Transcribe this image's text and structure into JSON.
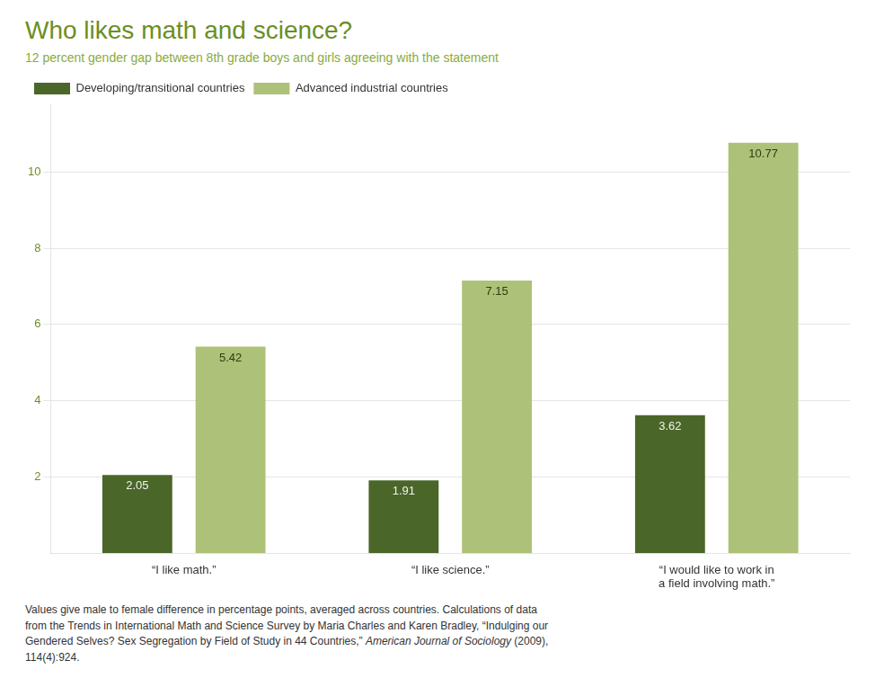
{
  "chart_data": {
    "type": "bar",
    "title": "Who likes math and science?",
    "subtitle": "12 percent gender gap between 8th grade boys and girls agreeing with the statement",
    "categories": [
      "“I like math.”",
      "“I like science.”",
      "“I would like to work in\na field involving math.”"
    ],
    "series": [
      {
        "name": "Developing/transitional countries",
        "color": "#4a6628",
        "values": [
          2.05,
          1.91,
          3.62
        ]
      },
      {
        "name": "Advanced industrial countries",
        "color": "#adc178",
        "values": [
          5.42,
          7.15,
          10.77
        ]
      }
    ],
    "ylim": [
      0,
      11.8
    ],
    "yticks": [
      2,
      4,
      6,
      8,
      10
    ],
    "grid": true,
    "legend": "top",
    "data_labels": true,
    "footnote": [
      "Values give male to female difference in percentage points, averaged across countries. Calculations of data\nfrom the Trends in International Math and Science Survey by Maria Charles and Karen Bradley, “Indulging our\nGendered Selves? Sex Segregation by Field of Study in 44 Countries,” ",
      "American Journal of Sociology",
      " (2009),\n114(4):924."
    ]
  }
}
